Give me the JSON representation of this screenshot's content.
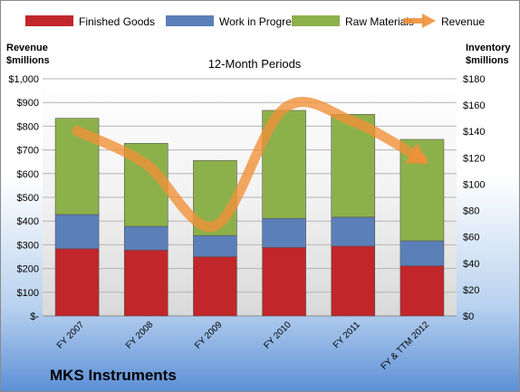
{
  "company": "MKS Instruments",
  "chart_data": {
    "type": "bar",
    "stacked": true,
    "subtitle": "12-Month Periods",
    "categories": [
      "FY 2007",
      "FY 2008",
      "FY 2009",
      "FY 2010",
      "FY 2011",
      "FY & TTM 2012"
    ],
    "left_axis": {
      "label_line1": "Revenue",
      "label_line2": "$millions",
      "range": [
        0,
        1000
      ],
      "ticks": [
        {
          "value": 0,
          "label": "$-"
        },
        {
          "value": 100,
          "label": "$100"
        },
        {
          "value": 200,
          "label": "$200"
        },
        {
          "value": 300,
          "label": "$300"
        },
        {
          "value": 400,
          "label": "$400"
        },
        {
          "value": 500,
          "label": "$500"
        },
        {
          "value": 600,
          "label": "$600"
        },
        {
          "value": 700,
          "label": "$700"
        },
        {
          "value": 800,
          "label": "$800"
        },
        {
          "value": 900,
          "label": "$900"
        },
        {
          "value": 1000,
          "label": "$1,000"
        }
      ]
    },
    "right_axis": {
      "label_line1": "Inventory",
      "label_line2": "$millions",
      "range": [
        0,
        180
      ],
      "ticks": [
        {
          "value": 0,
          "label": "$0"
        },
        {
          "value": 20,
          "label": "$20"
        },
        {
          "value": 40,
          "label": "$40"
        },
        {
          "value": 60,
          "label": "$60"
        },
        {
          "value": 80,
          "label": "$80"
        },
        {
          "value": 100,
          "label": "$100"
        },
        {
          "value": 120,
          "label": "$120"
        },
        {
          "value": 140,
          "label": "$140"
        },
        {
          "value": 160,
          "label": "$160"
        },
        {
          "value": 180,
          "label": "$180"
        }
      ]
    },
    "series": [
      {
        "name": "Finished Goods",
        "axis": "right",
        "color": "#c0262a",
        "values": [
          51,
          50,
          45,
          52,
          53,
          38
        ]
      },
      {
        "name": "Work in Progress",
        "axis": "right",
        "color": "#5b7fb9",
        "values": [
          26,
          18,
          16,
          22,
          22,
          19
        ]
      },
      {
        "name": "Raw Materials",
        "axis": "right",
        "color": "#8db14a",
        "values": [
          73,
          63,
          57,
          82,
          78,
          77
        ]
      },
      {
        "name": "Revenue",
        "axis": "left",
        "type": "line",
        "color": "#f0913a",
        "values": [
          780,
          640,
          380,
          875,
          820,
          660
        ]
      }
    ],
    "grid": true,
    "legend": "top"
  }
}
